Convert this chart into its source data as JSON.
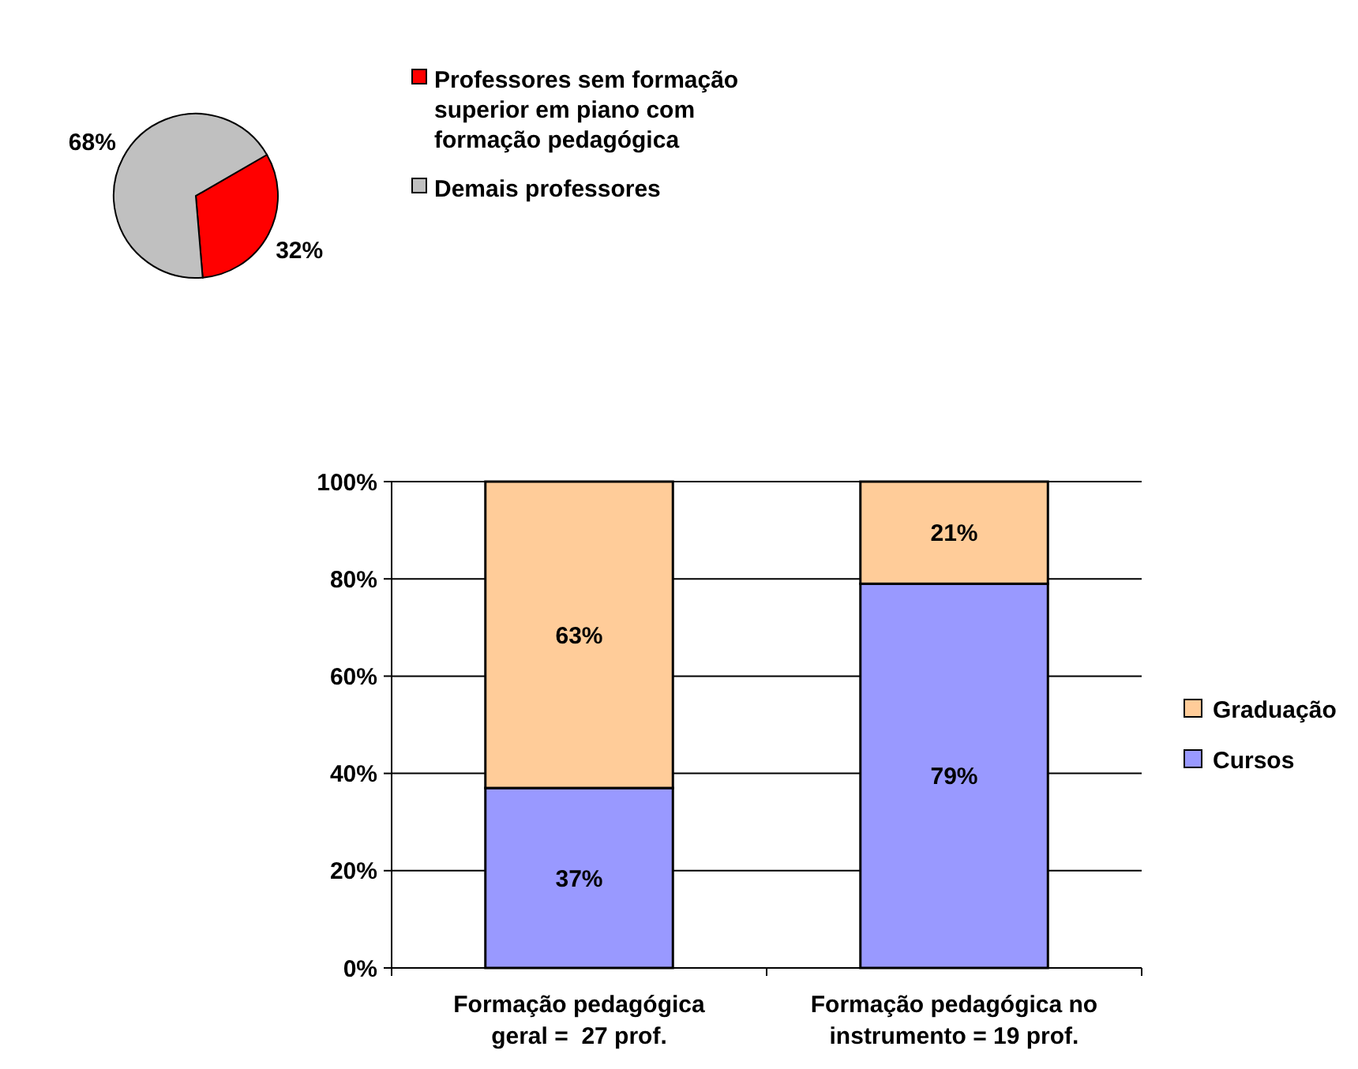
{
  "chart_data": [
    {
      "type": "pie",
      "categories": [
        "Professores sem formação superior em piano com formação pedagógica",
        "Demais professores"
      ],
      "values": [
        32,
        68
      ],
      "colors": [
        "#ff0000",
        "#c0c0c0"
      ],
      "value_labels": [
        "32%",
        "68%"
      ],
      "legend": "right"
    },
    {
      "type": "bar",
      "stacked": true,
      "categories": [
        "Formação pedagógica geral =  27 prof.",
        "Formação pedagógica no instrumento = 19 prof."
      ],
      "series": [
        {
          "name": "Cursos",
          "color": "#9999ff",
          "values": [
            37,
            79
          ],
          "value_labels": [
            "37%",
            "79%"
          ]
        },
        {
          "name": "Graduação",
          "color": "#ffcc99",
          "values": [
            63,
            21
          ],
          "value_labels": [
            "63%",
            "21%"
          ]
        }
      ],
      "ylim": [
        0,
        100
      ],
      "yticks": [
        {
          "value": 0,
          "label": "0%"
        },
        {
          "value": 20,
          "label": "20%"
        },
        {
          "value": 40,
          "label": "40%"
        },
        {
          "value": 60,
          "label": "60%"
        },
        {
          "value": 80,
          "label": "80%"
        },
        {
          "value": 100,
          "label": "100%"
        }
      ],
      "grid": "y",
      "legend": "right"
    }
  ]
}
